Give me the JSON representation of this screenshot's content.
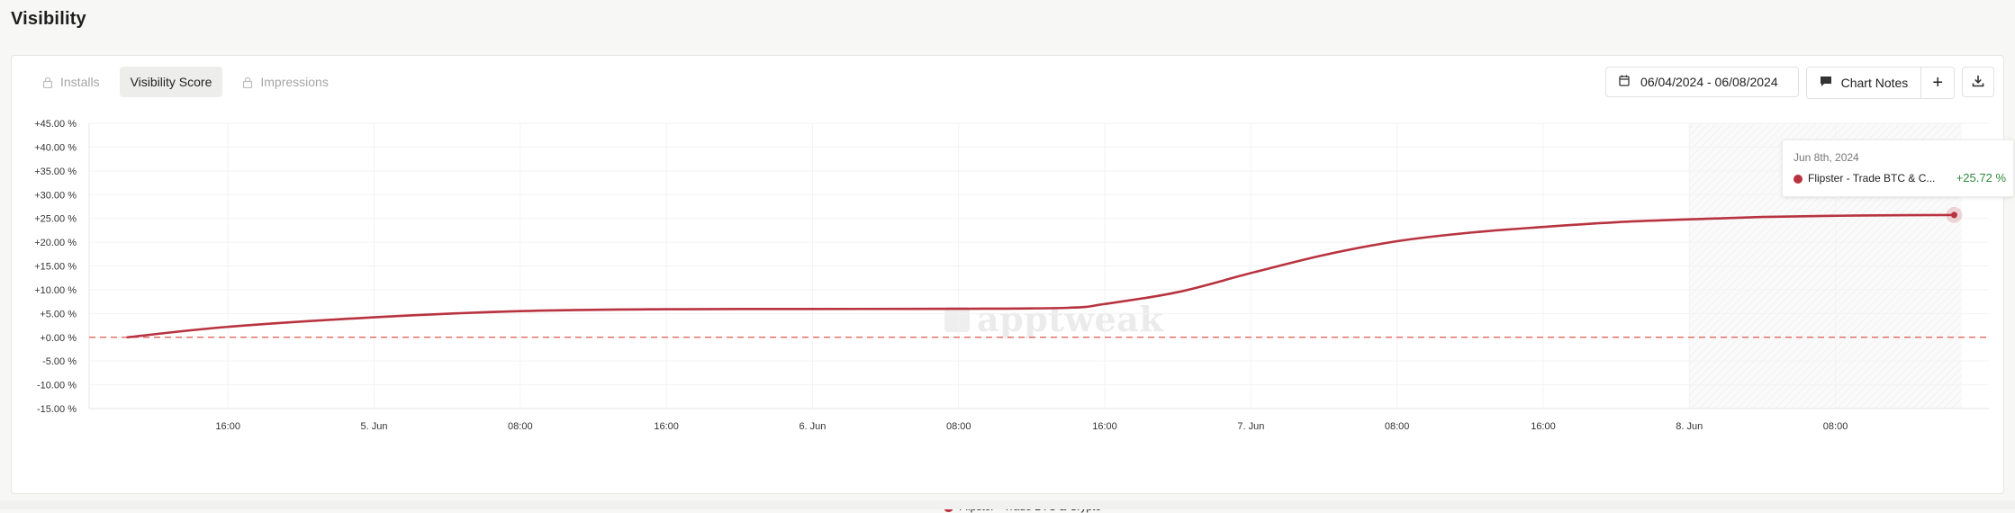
{
  "page": {
    "title": "Visibility"
  },
  "tabs": [
    {
      "label": "Installs",
      "locked": true,
      "active": false
    },
    {
      "label": "Visibility Score",
      "locked": false,
      "active": true
    },
    {
      "label": "Impressions",
      "locked": true,
      "active": false
    }
  ],
  "toolbar": {
    "date_range": "06/04/2024 - 06/08/2024",
    "chart_notes_label": "Chart Notes",
    "add_label": "+",
    "icons": [
      "calendar-icon",
      "comment-icon",
      "download-icon"
    ]
  },
  "watermark": "apptweak",
  "tooltip": {
    "date": "Jun 8th, 2024",
    "series_name": "Flipster - Trade BTC & C...",
    "value": "+25.72 %",
    "value_color": "#2f8a3a"
  },
  "legend": {
    "label": "Flipster - Trade BTC & Crypto",
    "color": "#b8333f"
  },
  "chart_data": {
    "type": "line",
    "title": "",
    "xlabel": "",
    "ylabel": "",
    "ylim": [
      -15,
      45
    ],
    "y_ticks": [
      "+45.00 %",
      "+40.00 %",
      "+35.00 %",
      "+30.00 %",
      "+25.00 %",
      "+20.00 %",
      "+15.00 %",
      "+10.00 %",
      "+5.00 %",
      "+0.00 %",
      "-5.00 %",
      "-10.00 %",
      "-15.00 %"
    ],
    "x_ticks": [
      "16:00",
      "5. Jun",
      "08:00",
      "16:00",
      "6. Jun",
      "08:00",
      "16:00",
      "7. Jun",
      "08:00",
      "16:00",
      "8. Jun",
      "08:00"
    ],
    "x_tick_hours": [
      16,
      24,
      32,
      40,
      48,
      56,
      64,
      72,
      80,
      88,
      96,
      104
    ],
    "baseline": 0,
    "baseline_color": "#e0594f",
    "grid": true,
    "legend_position": "bottom-center",
    "highlight_range_hours": [
      96,
      110.5
    ],
    "series": [
      {
        "name": "Flipster - Trade BTC & Crypto",
        "color": "#b8333f",
        "x_hours": [
          10.5,
          16,
          24,
          32,
          40,
          48,
          56,
          62,
          64,
          68,
          72,
          76,
          80,
          84,
          88,
          92,
          96,
          100,
          104,
          108,
          110.5
        ],
        "values": [
          0,
          2.2,
          4.2,
          5.5,
          5.9,
          5.95,
          6.0,
          6.2,
          7.0,
          9.5,
          13.5,
          17.3,
          20.2,
          22.0,
          23.2,
          24.2,
          24.8,
          25.3,
          25.55,
          25.68,
          25.72
        ]
      }
    ]
  }
}
